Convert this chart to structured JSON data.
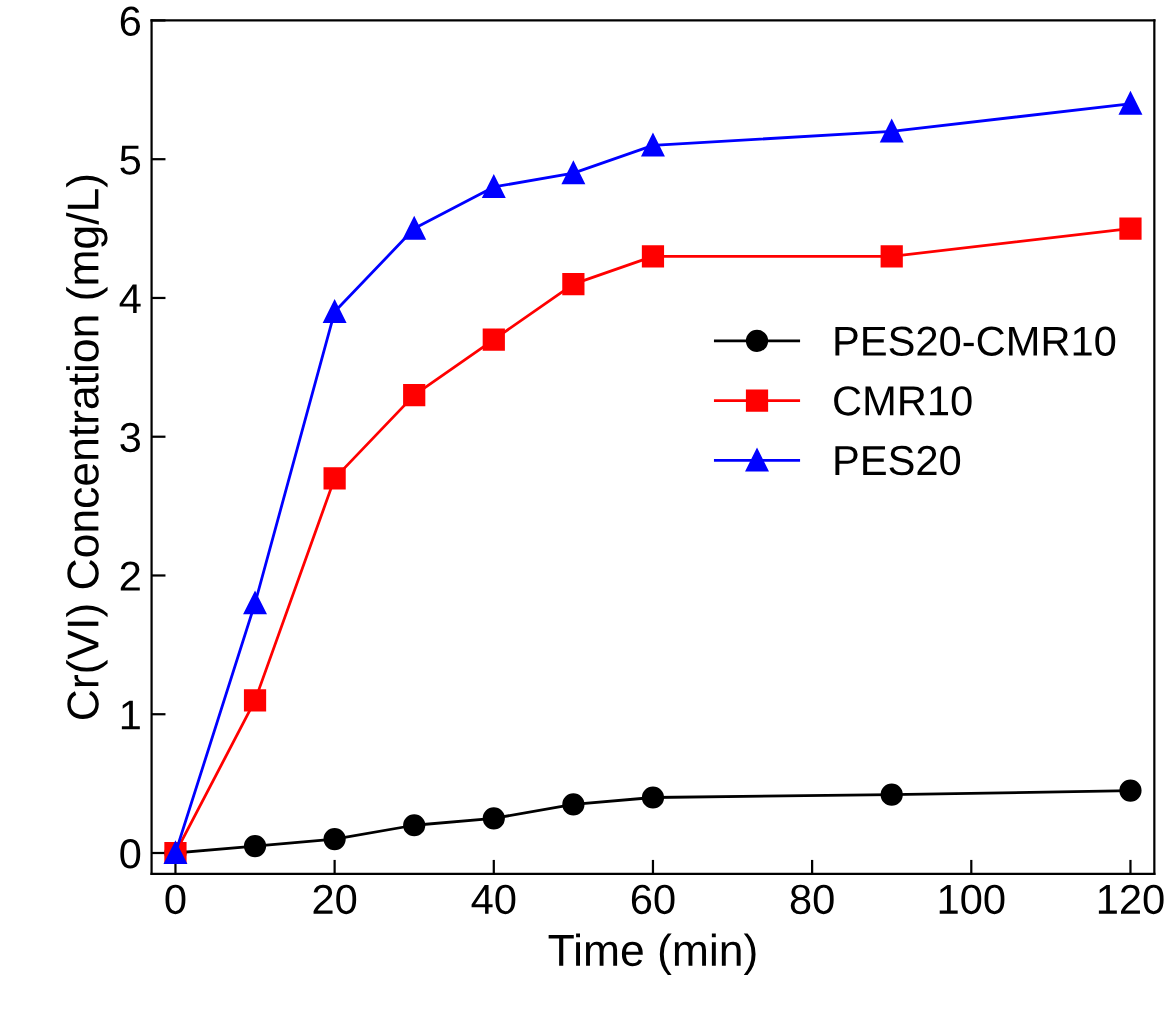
{
  "chart_data": {
    "type": "line",
    "xlabel": "Time (min)",
    "ylabel": "Cr(VI) Concentration (mg/L)",
    "x": [
      0,
      10,
      20,
      30,
      40,
      50,
      60,
      90,
      120
    ],
    "series": [
      {
        "name": "PES20-CMR10",
        "color": "#000000",
        "marker": "circle",
        "values": [
          0,
          0.05,
          0.1,
          0.2,
          0.25,
          0.35,
          0.4,
          0.42,
          0.45
        ]
      },
      {
        "name": "CMR10",
        "color": "#ff0000",
        "marker": "square",
        "values": [
          0,
          1.1,
          2.7,
          3.3,
          3.7,
          4.1,
          4.3,
          4.3,
          4.5
        ]
      },
      {
        "name": "PES20",
        "color": "#0000ff",
        "marker": "triangle",
        "values": [
          0,
          1.8,
          3.9,
          4.5,
          4.8,
          4.9,
          5.1,
          5.2,
          5.4
        ]
      }
    ],
    "xlim": [
      -3,
      123
    ],
    "xticks": [
      0,
      20,
      40,
      60,
      80,
      100,
      120
    ],
    "ylim": [
      -0.15,
      6
    ],
    "yticks": [
      0,
      1,
      2,
      3,
      4,
      5,
      6
    ],
    "grid": false,
    "legend": "right",
    "line_style": "solid"
  }
}
